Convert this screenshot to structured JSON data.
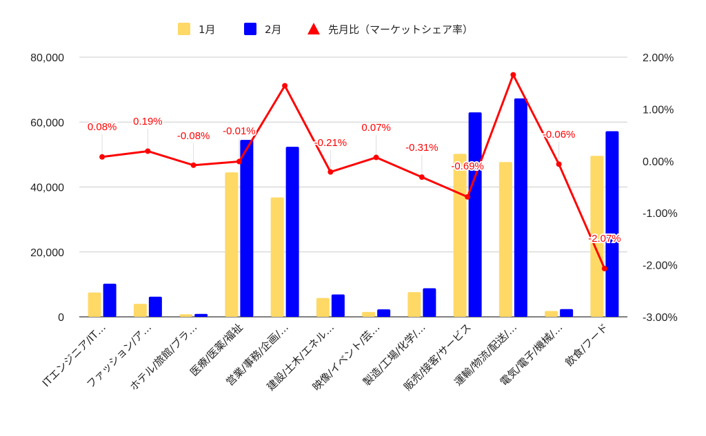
{
  "chart_data": {
    "type": "bar",
    "categories": [
      "ITエンジニア/IT…",
      "ファッション/ア…",
      "ホテル/旅館/ブラ…",
      "医療/医薬/福祉",
      "営業/事務/企画/…",
      "建設/土木/エネル…",
      "映像/イベント/芸…",
      "製造/工場/化学/…",
      "販売/接客/サービス",
      "運輸/物流/配送/…",
      "電気/電子/機械/…",
      "飲食/フード"
    ],
    "series": [
      {
        "name": "1月",
        "color": "#FFD966",
        "axis": "left",
        "type": "bar",
        "values": [
          7500,
          4000,
          800,
          44500,
          36800,
          5800,
          1500,
          7600,
          50200,
          47700,
          1800,
          49600
        ]
      },
      {
        "name": "2月",
        "color": "#0000FF",
        "axis": "left",
        "type": "bar",
        "values": [
          10200,
          6200,
          900,
          54500,
          52400,
          6900,
          2300,
          8800,
          63000,
          67300,
          2400,
          57200
        ]
      },
      {
        "name": "先月比（マーケットシェア率）",
        "color": "#FF0000",
        "axis": "right",
        "type": "line",
        "values": [
          0.08,
          0.19,
          -0.08,
          -0.01,
          1.45,
          -0.21,
          0.07,
          -0.31,
          -0.69,
          1.66,
          -0.06,
          -2.07
        ],
        "data_labels": [
          "0.08%",
          "0.19%",
          "-0.08%",
          "-0.01%",
          "",
          "-0.21%",
          "0.07%",
          "-0.31%",
          "-0.69%",
          "",
          "-0.06%",
          "-2.07%"
        ]
      }
    ],
    "y_left": {
      "ylim": [
        0,
        80000
      ],
      "ticks": [
        0,
        20000,
        40000,
        60000,
        80000
      ],
      "tick_labels": [
        "0",
        "20,000",
        "40,000",
        "60,000",
        "80,000"
      ]
    },
    "y_right": {
      "ylim": [
        -3,
        2
      ],
      "ticks": [
        -3,
        -2,
        -1,
        0,
        1,
        2
      ],
      "tick_labels": [
        "-3.00%",
        "-2.00%",
        "-1.00%",
        "0.00%",
        "1.00%",
        "2.00%"
      ]
    },
    "grid": true,
    "legend": "top-center"
  }
}
